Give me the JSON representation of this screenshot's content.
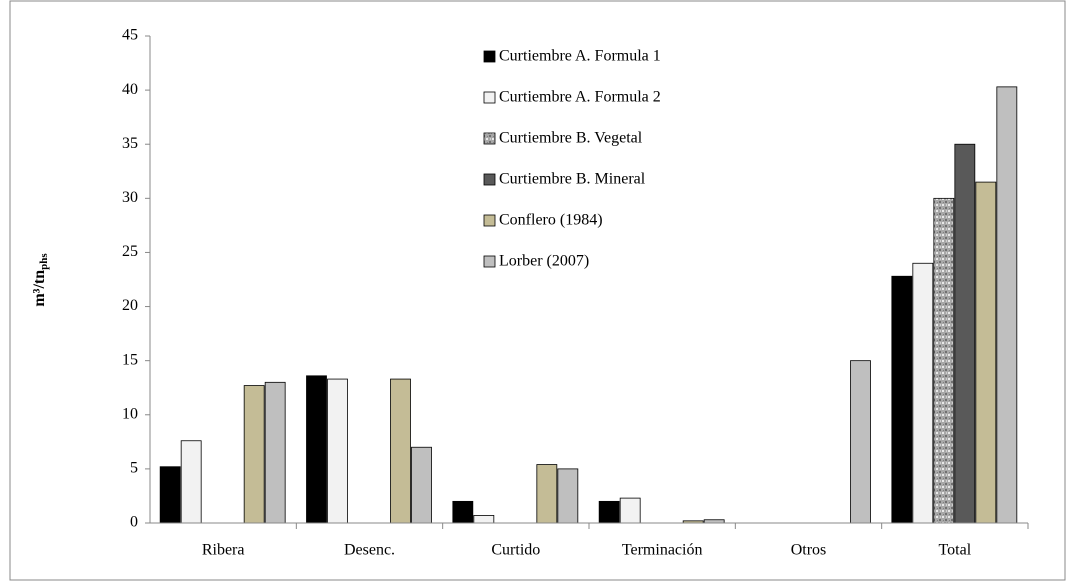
{
  "chart_data": {
    "type": "bar",
    "ylabel": {
      "main": "m³/tn",
      "sub": "phs"
    },
    "categories": [
      "Ribera",
      "Desenc.",
      "Curtido",
      "Terminación",
      "Otros",
      "Total"
    ],
    "series": [
      {
        "name": "Curtiembre A. Formula 1",
        "color": "#000000",
        "values": [
          5.2,
          13.6,
          2.0,
          2.0,
          0,
          22.8
        ]
      },
      {
        "name": "Curtiembre A. Formula 2",
        "color": "#f2f2f2",
        "values": [
          7.6,
          13.3,
          0.7,
          2.3,
          0,
          24.0
        ]
      },
      {
        "name": "Curtiembre B. Vegetal",
        "color": "#a8a8a8",
        "values": [
          0,
          0,
          0,
          0,
          0,
          30.0
        ]
      },
      {
        "name": "Curtiembre B. Mineral",
        "color": "#595959",
        "values": [
          0,
          0,
          0,
          0,
          0,
          35.0
        ]
      },
      {
        "name": "Conflero (1984)",
        "color": "#c4bc96",
        "values": [
          12.7,
          13.3,
          5.4,
          0.2,
          0,
          31.5
        ]
      },
      {
        "name": "Lorber (2007)",
        "color": "#bfbfbf",
        "values": [
          13.0,
          7.0,
          5.0,
          0.3,
          15.0,
          40.3
        ]
      }
    ],
    "ylim": [
      0,
      45
    ],
    "yticks": [
      0,
      5,
      10,
      15,
      20,
      25,
      30,
      35,
      40,
      45
    ],
    "grid": false
  }
}
